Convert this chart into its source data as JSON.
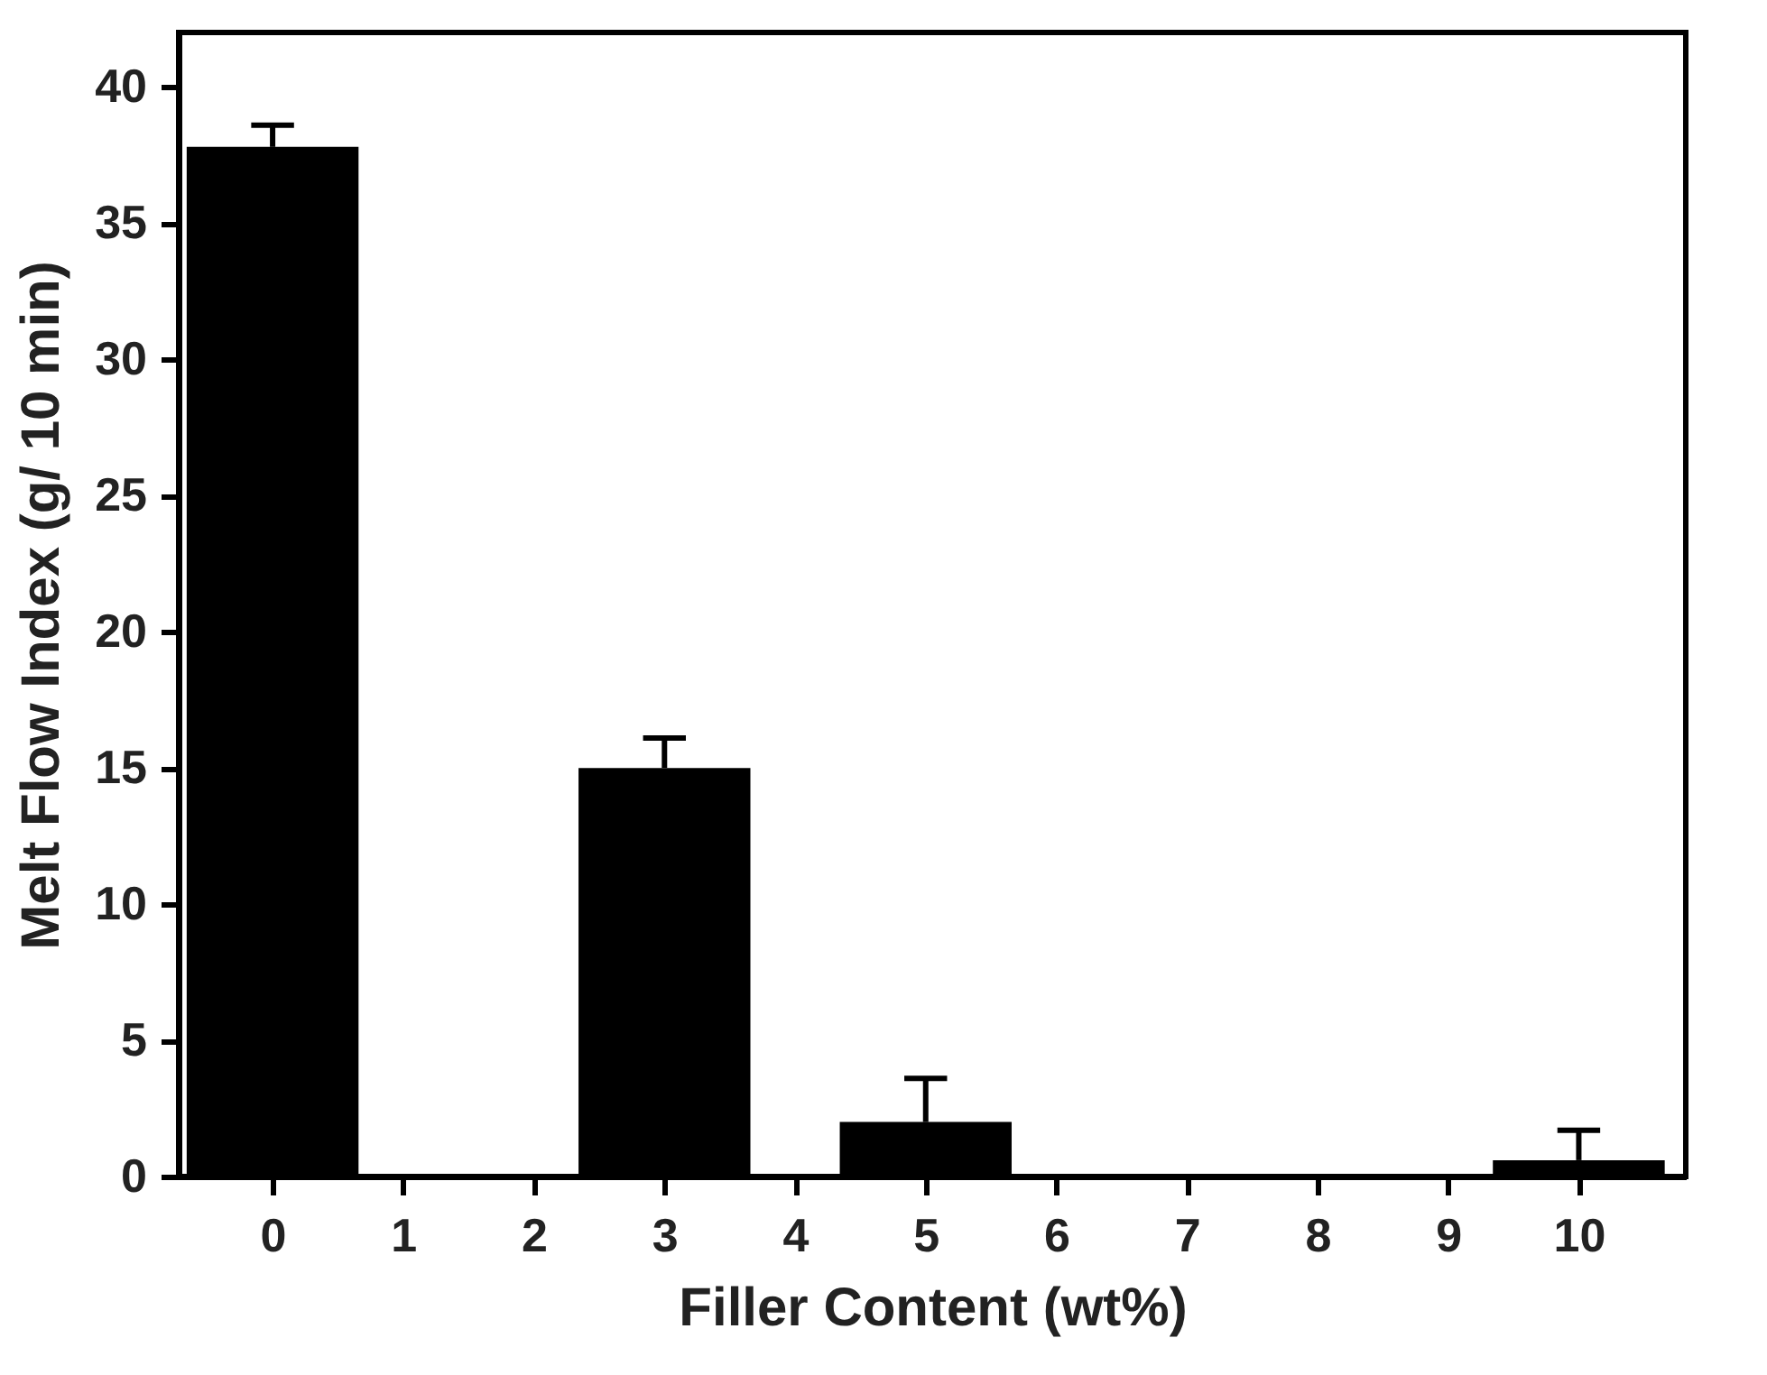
{
  "chart_data": {
    "type": "bar",
    "xlabel": "Filler Content (wt%)",
    "ylabel": "Melt Flow Index (g/ 10 min)",
    "x": [
      0,
      3,
      5,
      10
    ],
    "values": [
      37.8,
      15,
      2,
      0.6
    ],
    "errors": [
      [
        37.8,
        38.6
      ],
      [
        15,
        16.1
      ],
      [
        2,
        3.6
      ],
      [
        0.6,
        1.7
      ]
    ],
    "color": "#000000",
    "xlim": [
      -0.65,
      10.75
    ],
    "xticks": [
      0,
      1,
      2,
      3,
      4,
      5,
      6,
      7,
      8,
      9,
      10
    ],
    "ylim": [
      0,
      42
    ],
    "yticks": [
      0,
      5,
      10,
      15,
      20,
      25,
      30,
      35,
      40
    ],
    "grid": false
  }
}
